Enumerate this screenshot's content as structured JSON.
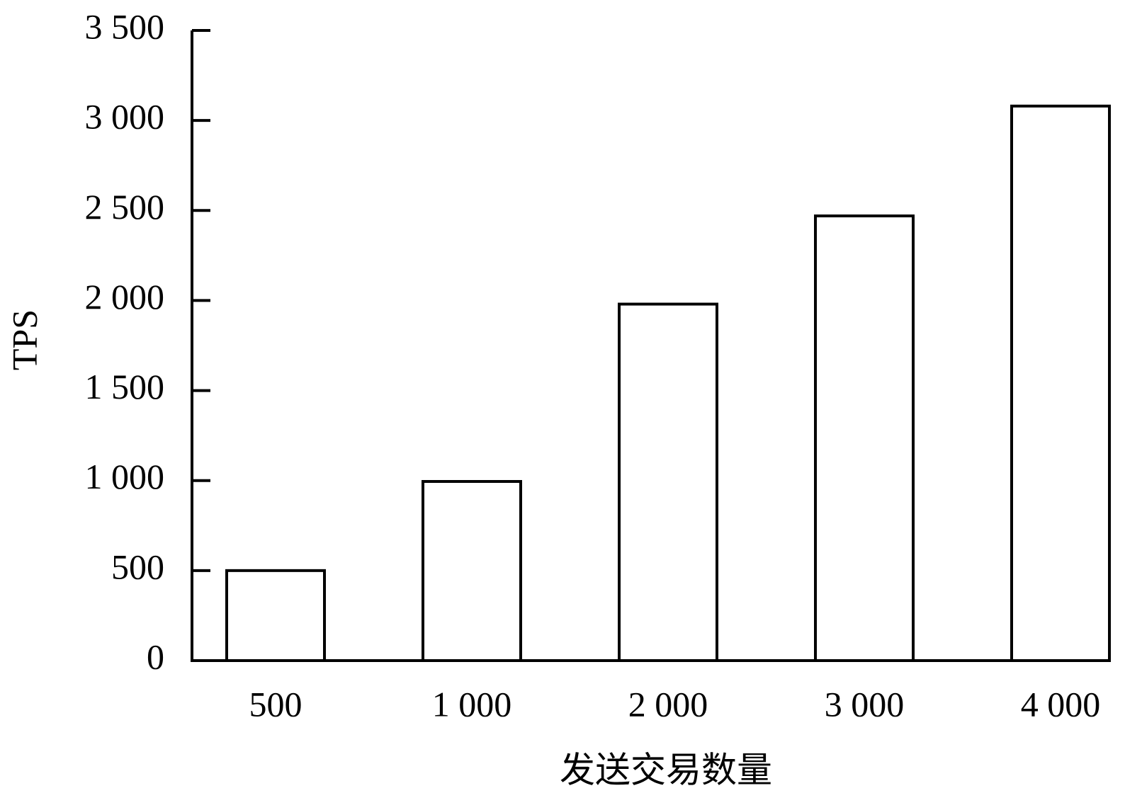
{
  "chart_data": {
    "type": "bar",
    "x_label": "发送交易数量",
    "y_label": "TPS",
    "categories": [
      "500",
      "1 000",
      "2 000",
      "3 000",
      "4 000"
    ],
    "values": [
      500,
      995,
      1980,
      2470,
      3080
    ],
    "color": "#ffffff",
    "ylim": [
      0,
      3500
    ],
    "yticks": [
      0,
      500,
      {
        "value": 1000,
        "label": "1 000"
      },
      {
        "value": 1500,
        "label": "1 500"
      },
      {
        "value": 2000,
        "label": "2 000"
      },
      {
        "value": 2500,
        "label": "2 500"
      },
      {
        "value": 3000,
        "label": "3 000"
      },
      {
        "value": 3500,
        "label": "3 500"
      }
    ],
    "grid": false
  }
}
